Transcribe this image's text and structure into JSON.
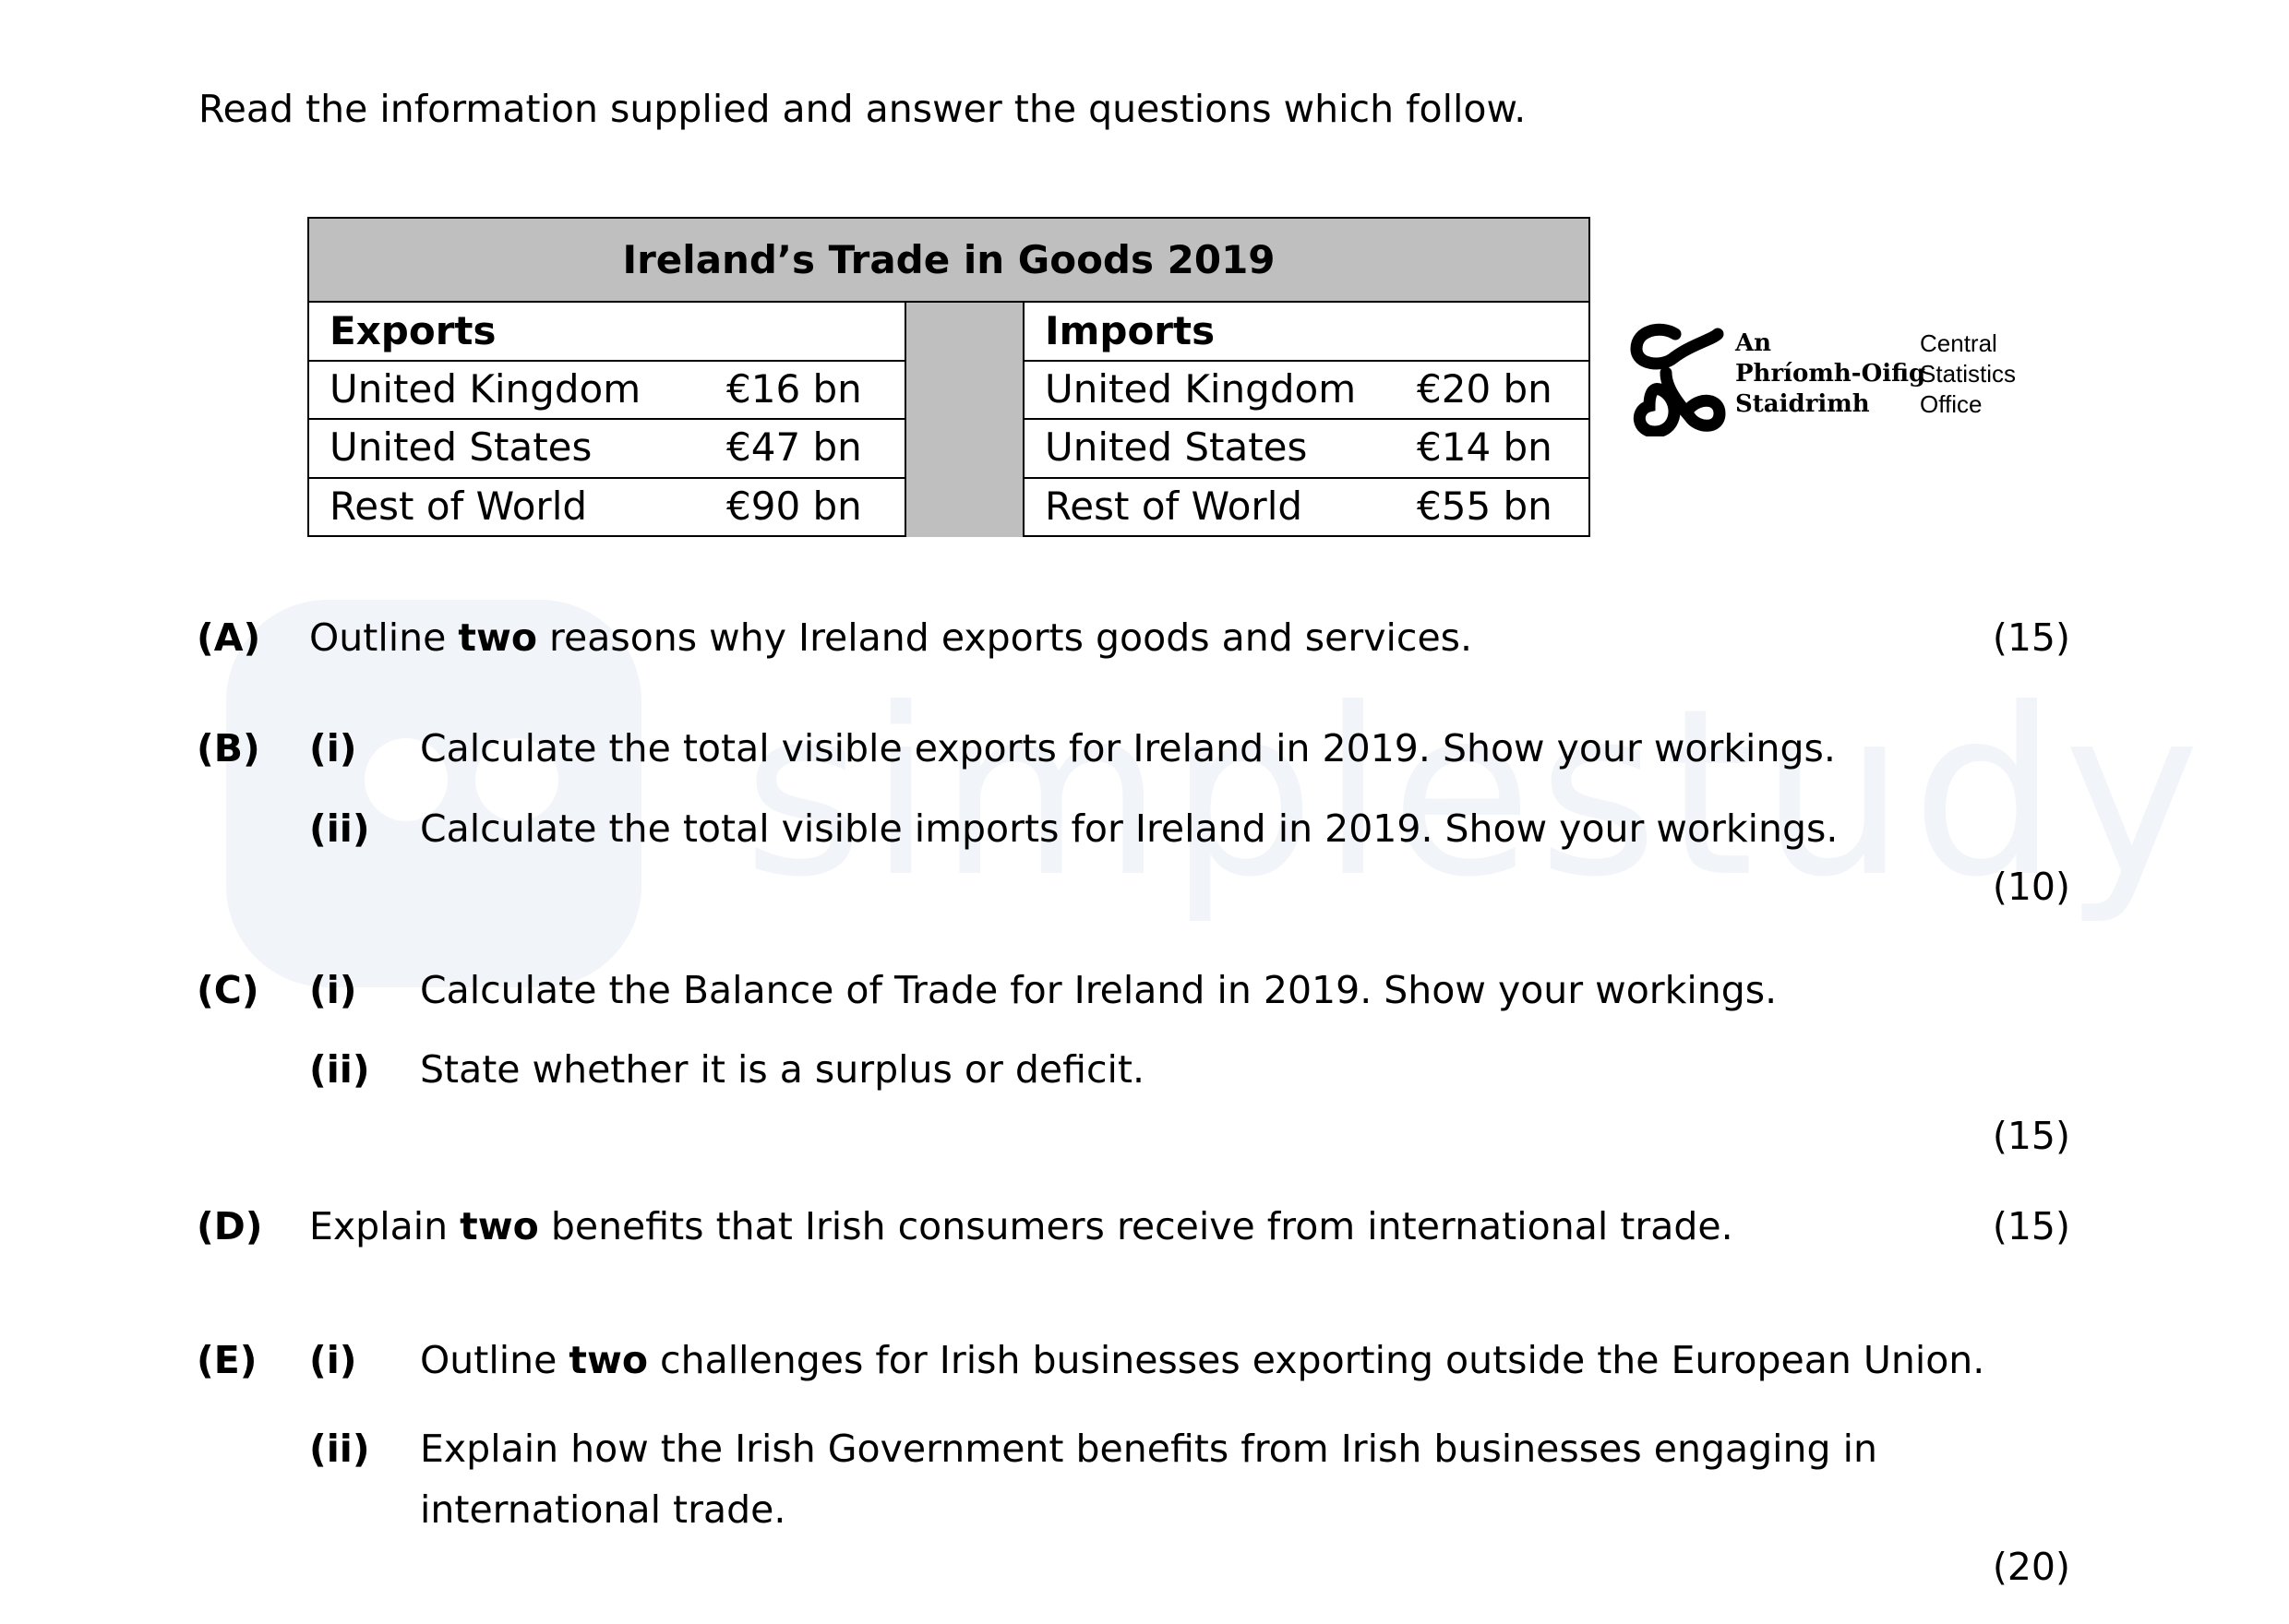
{
  "intro": "Read the information supplied and answer the questions which follow.",
  "table": {
    "title": "Ireland’s Trade in Goods 2019",
    "exports_header": "Exports",
    "imports_header": "Imports",
    "exports": [
      {
        "country": "United Kingdom",
        "value": "€16 bn"
      },
      {
        "country": "United States",
        "value": "€47 bn"
      },
      {
        "country": "Rest of World",
        "value": "€90 bn"
      }
    ],
    "imports": [
      {
        "country": "United Kingdom",
        "value": "€20 bn"
      },
      {
        "country": "United States",
        "value": "€14 bn"
      },
      {
        "country": "Rest of World",
        "value": "€55 bn"
      }
    ]
  },
  "logo": {
    "irish": [
      "An",
      "Phríomh-Oifig",
      "Staidrimh"
    ],
    "english": [
      "Central",
      "Statistics",
      "Office"
    ]
  },
  "watermark": "simplestudy",
  "questions": {
    "a": {
      "label": "(A)",
      "pre": "Outline ",
      "bold": "two",
      "post": " reasons why Ireland exports goods and services.",
      "marks": "(15)"
    },
    "b": {
      "label": "(B)",
      "i_label": "(i)",
      "i_text": "Calculate the total visible exports for Ireland in 2019. Show your workings.",
      "ii_label": "(ii)",
      "ii_text": "Calculate the total visible imports for Ireland in 2019. Show your workings.",
      "marks": "(10)"
    },
    "c": {
      "label": "(C)",
      "i_label": "(i)",
      "i_text": "Calculate the Balance of Trade for Ireland in 2019. Show your workings.",
      "ii_label": "(ii)",
      "ii_text": "State whether it is a surplus or deficit.",
      "marks": "(15)"
    },
    "d": {
      "label": "(D)",
      "pre": "Explain ",
      "bold": "two",
      "post": " benefits that Irish consumers receive from international trade.",
      "marks": "(15)"
    },
    "e": {
      "label": "(E)",
      "i_label": "(i)",
      "i_pre": "Outline ",
      "i_bold": "two",
      "i_post": " challenges for Irish businesses exporting outside the European Union.",
      "ii_label": "(ii)",
      "ii_line1": "Explain how the Irish Government benefits from Irish businesses engaging in",
      "ii_line2": "international trade.",
      "marks": "(20)"
    }
  }
}
